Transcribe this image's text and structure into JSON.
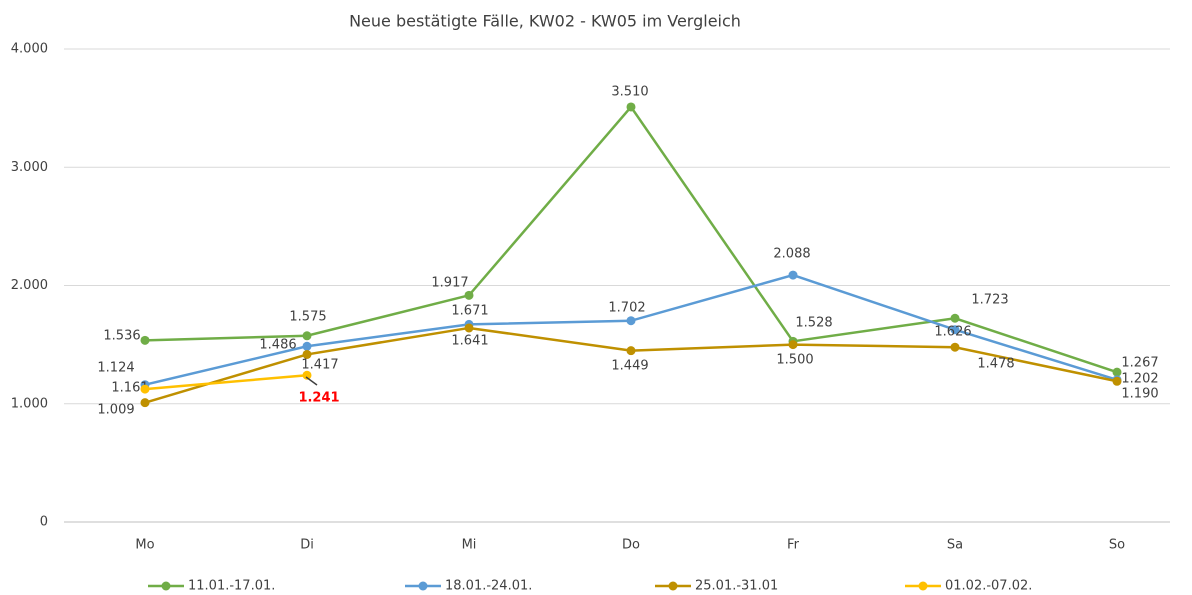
{
  "chart_data": {
    "type": "line",
    "title": "Neue bestätigte Fälle, KW02 - KW05 im Vergleich",
    "categories": [
      "Mo",
      "Di",
      "Mi",
      "Do",
      "Fr",
      "Sa",
      "So"
    ],
    "series": [
      {
        "name": "11.01.-17.01.",
        "color": "#70ad47",
        "values": [
          1536,
          1575,
          1917,
          3510,
          1528,
          1723,
          1267
        ],
        "value_labels": [
          "1.536",
          "1.575",
          "1.917",
          "3.510",
          "1.528",
          "1.723",
          "1.267"
        ]
      },
      {
        "name": "18.01.-24.01.",
        "color": "#5b9bd5",
        "values": [
          1161,
          1486,
          1671,
          1702,
          2088,
          1626,
          1202
        ],
        "value_labels": [
          "1.161",
          "1.486",
          "1.671",
          "1.702",
          "2.088",
          "1.626",
          "1.202"
        ]
      },
      {
        "name": "25.01.-31.01",
        "color": "#bf9000",
        "values": [
          1009,
          1417,
          1641,
          1449,
          1500,
          1478,
          1190
        ],
        "value_labels": [
          "1.009",
          "1.417",
          "1.641",
          "1.449",
          "1.500",
          "1.478",
          "1.190"
        ]
      },
      {
        "name": "01.02.-07.02.",
        "color": "#ffc000",
        "values": [
          1124,
          1241,
          null,
          null,
          null,
          null,
          null
        ],
        "value_labels": [
          "1.124",
          "1.241",
          null,
          null,
          null,
          null,
          null
        ]
      }
    ],
    "ylim": [
      0,
      4000
    ],
    "yticks": [
      0,
      {
        "value": 1000,
        "label": "1.000"
      },
      {
        "value": 2000,
        "label": "2.000"
      },
      {
        "value": 3000,
        "label": "3.000"
      },
      {
        "value": 4000,
        "label": "4.000"
      }
    ],
    "grid": true,
    "legend": "bottom"
  }
}
